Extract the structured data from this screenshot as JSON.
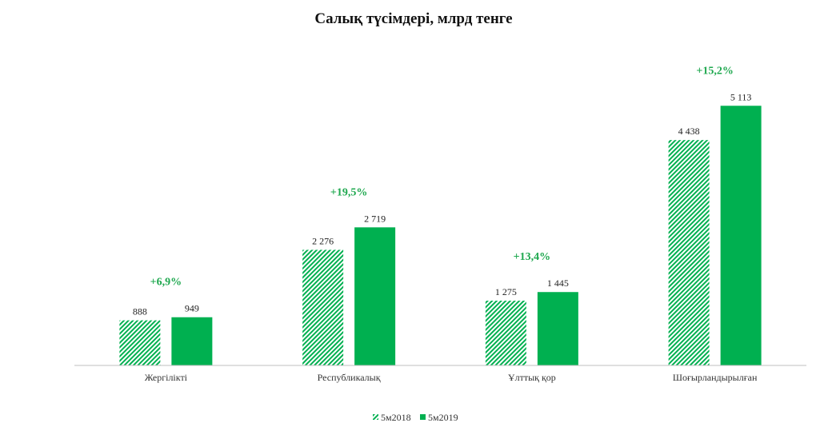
{
  "chart_data": {
    "type": "bar",
    "title": "Салық түсімдері, млрд тенге",
    "categories": [
      "Жергілікті",
      "Республикалық",
      "Ұлттық қор",
      "Шоғырландырылған"
    ],
    "series": [
      {
        "name": "5м2018",
        "values": [
          888,
          2276,
          1275,
          4438
        ],
        "labels": [
          "888",
          "2 276",
          "1 275",
          "4 438"
        ],
        "pattern": "hatched"
      },
      {
        "name": "5м2019",
        "values": [
          949,
          2719,
          1445,
          5113
        ],
        "labels": [
          "949",
          "2 719",
          "1 445",
          "5 113"
        ],
        "pattern": "solid"
      }
    ],
    "growth_labels": [
      "+6,9%",
      "+19,5%",
      "+13,4%",
      "+15,2%"
    ],
    "ylim": [
      0,
      5700
    ],
    "grid": false,
    "legend_position": "bottom",
    "colors": {
      "bar": "#00b050",
      "growth_text": "#1fa84f",
      "axis": "#bfbfbf"
    }
  }
}
